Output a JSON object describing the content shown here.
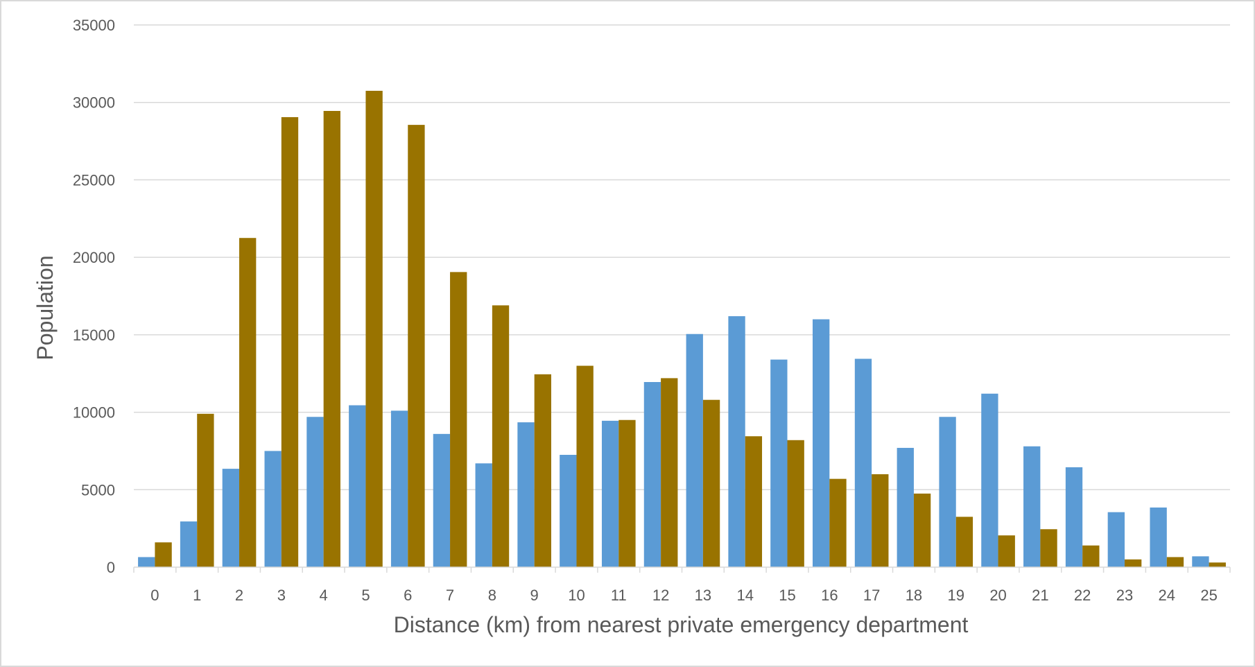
{
  "chart_data": {
    "type": "bar",
    "title": "",
    "xlabel": "Distance (km) from nearest private emergency department",
    "ylabel": "Population",
    "ylim": [
      0,
      35000
    ],
    "yticks": [
      0,
      5000,
      10000,
      15000,
      20000,
      25000,
      30000,
      35000
    ],
    "grid": true,
    "legend": "none",
    "categories": [
      "0",
      "1",
      "2",
      "3",
      "4",
      "5",
      "6",
      "7",
      "8",
      "9",
      "10",
      "11",
      "12",
      "13",
      "14",
      "15",
      "16",
      "17",
      "18",
      "19",
      "20",
      "21",
      "22",
      "23",
      "24",
      "25"
    ],
    "series": [
      {
        "color": "#5b9bd5",
        "values": [
          650,
          2950,
          6350,
          7500,
          9700,
          10450,
          10100,
          8600,
          6700,
          9350,
          7250,
          9450,
          11950,
          15050,
          16200,
          13400,
          16000,
          13450,
          7700,
          9700,
          11200,
          7800,
          6450,
          3550,
          3850,
          700
        ]
      },
      {
        "color": "#997300",
        "values": [
          1600,
          9900,
          21250,
          29050,
          29450,
          30750,
          28550,
          19050,
          16900,
          12450,
          13000,
          9500,
          12200,
          10800,
          8450,
          8200,
          5700,
          6000,
          4750,
          3250,
          2050,
          2450,
          1400,
          500,
          650,
          300
        ]
      }
    ]
  }
}
